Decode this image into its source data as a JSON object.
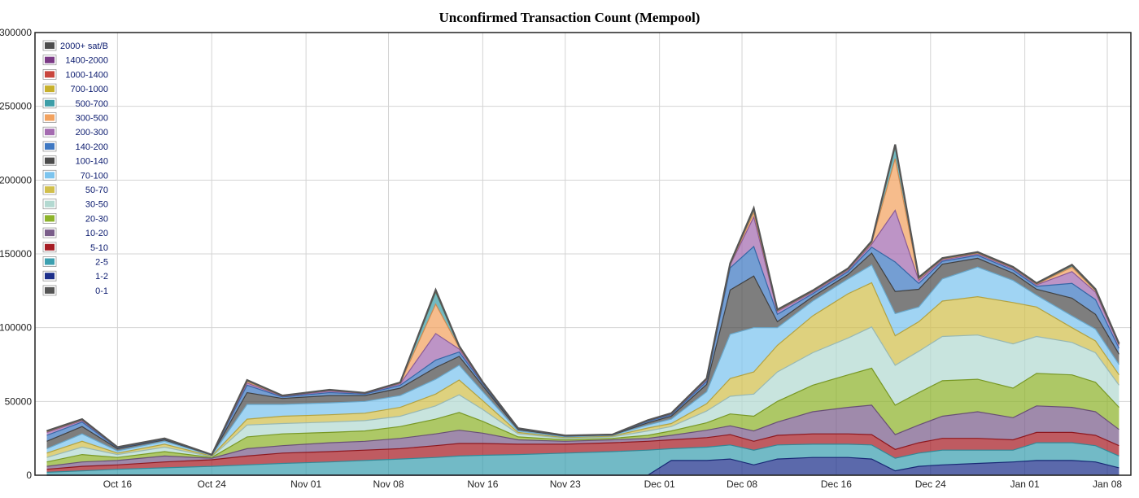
{
  "chart_data": {
    "type": "area",
    "title": "Unconfirmed Transaction Count (Mempool)",
    "xlabel": "",
    "ylabel": "",
    "ylim": [
      0,
      300000
    ],
    "yticks": [
      0,
      50000,
      100000,
      150000,
      200000,
      250000,
      300000
    ],
    "ytick_labels": [
      "0",
      "50000",
      "100000",
      "150000",
      "200000",
      "250000",
      "300000"
    ],
    "xticks": [
      "Oct 16",
      "Oct 24",
      "Nov 01",
      "Nov 08",
      "Nov 16",
      "Nov 23",
      "Dec 01",
      "Dec 08",
      "Dec 16",
      "Dec 24",
      "Jan 01",
      "Jan 08"
    ],
    "grid": true,
    "legend_position": "top-left",
    "x": [
      "Oct 10",
      "Oct 13",
      "Oct 16",
      "Oct 20",
      "Oct 24",
      "Oct 27",
      "Oct 30",
      "Nov 03",
      "Nov 06",
      "Nov 09",
      "Nov 12",
      "Nov 14",
      "Nov 16",
      "Nov 19",
      "Nov 23",
      "Nov 27",
      "Nov 30",
      "Dec 02",
      "Dec 05",
      "Dec 07",
      "Dec 09",
      "Dec 11",
      "Dec 14",
      "Dec 17",
      "Dec 19",
      "Dec 21",
      "Dec 23",
      "Dec 25",
      "Dec 28",
      "Dec 31",
      "Jan 02",
      "Jan 05",
      "Jan 07",
      "Jan 09"
    ],
    "series": [
      {
        "name": "0-1",
        "color": "#555555",
        "values": [
          0,
          0,
          0,
          0,
          0,
          0,
          0,
          0,
          0,
          0,
          0,
          0,
          0,
          0,
          0,
          0,
          0,
          0,
          0,
          0,
          0,
          0,
          0,
          0,
          0,
          0,
          0,
          0,
          0,
          0,
          0,
          0,
          0,
          0
        ]
      },
      {
        "name": "1-2",
        "color": "#1c2f8a",
        "values": [
          0,
          0,
          0,
          0,
          0,
          0,
          0,
          0,
          0,
          0,
          0,
          0,
          0,
          0,
          0,
          0,
          0,
          10000,
          10000,
          11000,
          7000,
          11000,
          12000,
          12000,
          11000,
          3000,
          6000,
          7000,
          8000,
          9000,
          10000,
          10000,
          9000,
          5000
        ]
      },
      {
        "name": "2-5",
        "color": "#3ca0b0",
        "values": [
          2000,
          3000,
          4000,
          5000,
          6000,
          7000,
          8000,
          9000,
          10000,
          11000,
          12000,
          13000,
          13500,
          14000,
          15000,
          16000,
          17000,
          8000,
          9000,
          9500,
          10000,
          9500,
          9000,
          9000,
          9500,
          8500,
          9000,
          10000,
          9000,
          8000,
          12000,
          12000,
          11000,
          8000
        ]
      },
      {
        "name": "5-10",
        "color": "#a61c24",
        "values": [
          2000,
          3000,
          3000,
          4000,
          4500,
          6000,
          7000,
          7000,
          7000,
          7000,
          8000,
          8500,
          8000,
          7000,
          6000,
          6000,
          6000,
          6000,
          6500,
          7000,
          6000,
          6500,
          7000,
          7000,
          7000,
          6000,
          7000,
          8000,
          8000,
          7000,
          7000,
          7000,
          7000,
          7000
        ]
      },
      {
        "name": "10-20",
        "color": "#7a5d8a",
        "values": [
          2000,
          3000,
          3000,
          4000,
          1000,
          5000,
          5000,
          6000,
          6000,
          7000,
          8000,
          9000,
          7000,
          3000,
          2000,
          2000,
          2000,
          3000,
          5000,
          6000,
          7000,
          9000,
          15000,
          18000,
          20000,
          10000,
          12000,
          15000,
          18000,
          15000,
          18000,
          17000,
          16000,
          11000
        ]
      },
      {
        "name": "20-30",
        "color": "#8db32b",
        "values": [
          3000,
          5000,
          2000,
          3000,
          500,
          8000,
          8000,
          7000,
          7000,
          8000,
          10000,
          12000,
          8000,
          2000,
          1000,
          1000,
          2000,
          3000,
          5000,
          8000,
          10000,
          14000,
          18000,
          22000,
          25000,
          20000,
          22000,
          24000,
          22000,
          20000,
          22000,
          22000,
          20000,
          15000
        ]
      },
      {
        "name": "30-50",
        "color": "#b3d9d1",
        "values": [
          3000,
          5000,
          2000,
          3000,
          500,
          8000,
          7000,
          7000,
          7000,
          7000,
          9000,
          12000,
          8000,
          2000,
          1000,
          1000,
          3000,
          3000,
          8000,
          12000,
          15000,
          20000,
          22000,
          25000,
          28000,
          27000,
          28000,
          30000,
          30000,
          30000,
          25000,
          22000,
          20000,
          15000
        ]
      },
      {
        "name": "50-70",
        "color": "#d1bf4c",
        "values": [
          3000,
          4000,
          1000,
          2000,
          500,
          4000,
          5000,
          5000,
          5000,
          6000,
          8000,
          10000,
          6000,
          1000,
          500,
          500,
          2000,
          2000,
          5000,
          12000,
          15000,
          18000,
          25000,
          30000,
          30000,
          20000,
          20000,
          24000,
          26000,
          28000,
          20000,
          10000,
          8000,
          7000
        ]
      },
      {
        "name": "70-100",
        "color": "#7cc4ee",
        "values": [
          3000,
          5000,
          1500,
          2000,
          500,
          10000,
          8000,
          8000,
          8000,
          8000,
          10000,
          10000,
          6000,
          1000,
          500,
          500,
          2000,
          3000,
          8000,
          30000,
          30000,
          12000,
          10000,
          10000,
          12000,
          15000,
          10000,
          15000,
          20000,
          15000,
          8000,
          8000,
          8000,
          7000
        ]
      },
      {
        "name": "100-140",
        "color": "#4c4c4c",
        "values": [
          5000,
          5000,
          1500,
          1000,
          200,
          8000,
          4000,
          5000,
          4000,
          5000,
          8000,
          6000,
          4000,
          1000,
          500,
          300,
          1500,
          2000,
          5000,
          30000,
          35000,
          4000,
          3000,
          3000,
          8000,
          15000,
          12000,
          10000,
          6000,
          5000,
          4000,
          12000,
          10000,
          7000
        ]
      },
      {
        "name": "140-200",
        "color": "#3f78c2",
        "values": [
          4000,
          3000,
          500,
          500,
          100,
          5000,
          1000,
          2000,
          1000,
          2000,
          5000,
          3000,
          1500,
          500,
          300,
          200,
          1000,
          1000,
          2000,
          15000,
          20000,
          5000,
          2000,
          2000,
          4000,
          20000,
          4000,
          2000,
          2000,
          2000,
          2000,
          10000,
          10000,
          4000
        ]
      },
      {
        "name": "200-300",
        "color": "#a46bb0",
        "values": [
          2000,
          1000,
          300,
          300,
          100,
          1500,
          500,
          1000,
          500,
          1000,
          18000,
          2000,
          500,
          300,
          100,
          100,
          500,
          500,
          1000,
          2000,
          20000,
          2000,
          1000,
          1000,
          2000,
          35000,
          2000,
          1000,
          1000,
          1000,
          1000,
          8000,
          5000,
          2000
        ]
      },
      {
        "name": "300-500",
        "color": "#f2a25f",
        "values": [
          500,
          500,
          100,
          100,
          0,
          1000,
          200,
          500,
          200,
          500,
          20000,
          1000,
          300,
          100,
          0,
          0,
          200,
          200,
          500,
          500,
          3000,
          500,
          500,
          500,
          1000,
          35000,
          1000,
          500,
          500,
          500,
          500,
          3000,
          1000,
          500
        ]
      },
      {
        "name": "500-700",
        "color": "#3d9ea8",
        "values": [
          300,
          300,
          100,
          0,
          0,
          500,
          100,
          200,
          100,
          200,
          8000,
          500,
          100,
          0,
          0,
          0,
          100,
          100,
          200,
          200,
          2000,
          300,
          300,
          300,
          500,
          8000,
          500,
          300,
          300,
          300,
          300,
          1000,
          500,
          300
        ]
      },
      {
        "name": "700-1000",
        "color": "#c7b02c",
        "values": [
          100,
          100,
          0,
          0,
          0,
          200,
          100,
          100,
          0,
          100,
          500,
          200,
          100,
          0,
          0,
          0,
          0,
          100,
          100,
          100,
          300,
          100,
          100,
          100,
          200,
          500,
          200,
          100,
          100,
          100,
          100,
          200,
          200,
          100
        ]
      },
      {
        "name": "1000-1400",
        "color": "#c9463d",
        "values": [
          100,
          100,
          0,
          0,
          0,
          100,
          100,
          100,
          0,
          100,
          500,
          200,
          100,
          0,
          0,
          0,
          0,
          100,
          100,
          100,
          300,
          100,
          100,
          100,
          200,
          500,
          200,
          100,
          100,
          100,
          100,
          200,
          200,
          100
        ]
      },
      {
        "name": "1400-2000",
        "color": "#7b3a86",
        "values": [
          0,
          0,
          0,
          0,
          0,
          100,
          0,
          0,
          0,
          0,
          300,
          100,
          0,
          0,
          0,
          0,
          0,
          0,
          100,
          100,
          200,
          100,
          100,
          100,
          100,
          300,
          100,
          100,
          100,
          100,
          100,
          100,
          100,
          100
        ]
      },
      {
        "name": "2000+ sat/B",
        "color": "#4d4d4d",
        "values": [
          0,
          0,
          0,
          0,
          0,
          100,
          0,
          0,
          0,
          0,
          300,
          100,
          0,
          0,
          0,
          0,
          0,
          0,
          100,
          100,
          200,
          100,
          100,
          100,
          100,
          300,
          100,
          100,
          100,
          100,
          100,
          100,
          100,
          100
        ]
      }
    ]
  }
}
